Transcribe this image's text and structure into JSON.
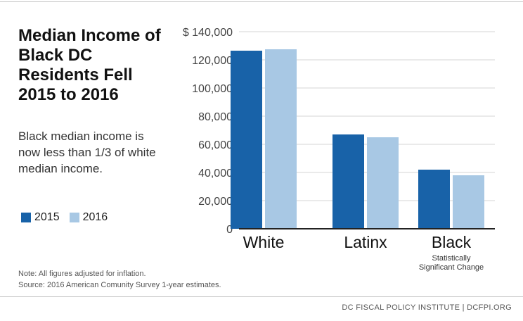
{
  "header": {
    "title": "Median Income of Black DC Residents Fell 2015 to 2016",
    "subtitle": "Black median income is now less than 1/3 of white median income."
  },
  "legend": [
    {
      "label": "2015",
      "color": "#1862a8"
    },
    {
      "label": "2016",
      "color": "#a8c8e4"
    }
  ],
  "notes": {
    "note": "Note: All figures adjusted for inflation.",
    "source": "Source: 2016 American Comunity Survey 1-year estimates."
  },
  "footer": "DC FISCAL POLICY INSTITUTE | DCFPI.ORG",
  "chart_data": {
    "type": "bar",
    "categories": [
      "White",
      "Latinx",
      "Black"
    ],
    "category_notes": [
      "",
      "",
      "Statistically Significant Change"
    ],
    "series": [
      {
        "name": "2015",
        "values": [
          126500,
          67000,
          42000
        ],
        "color": "#1862a8"
      },
      {
        "name": "2016",
        "values": [
          127500,
          65000,
          38000
        ],
        "color": "#a8c8e4"
      }
    ],
    "y_tick_labels": [
      "0",
      "20,000",
      "40,000",
      "60,000",
      "80,000",
      "100,000",
      "120,000",
      "$ 140,000"
    ],
    "ylim": [
      0,
      140000
    ],
    "grid": true,
    "legend_position": "left"
  }
}
